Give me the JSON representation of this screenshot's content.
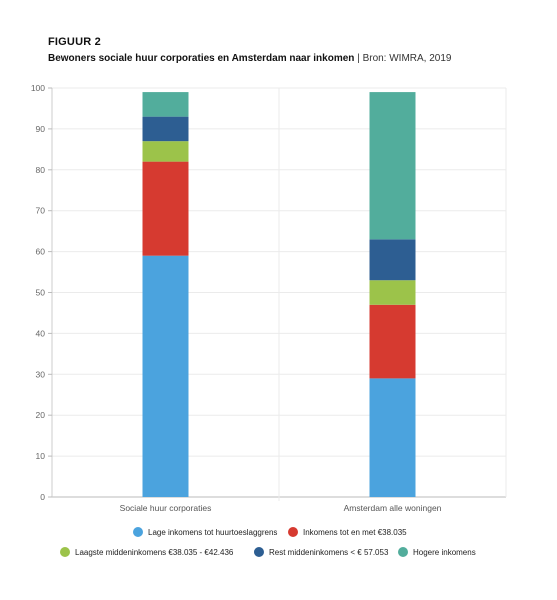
{
  "figure_label": "FIGUUR 2",
  "title": "Bewoners sociale huur corporaties en Amsterdam naar inkomen",
  "source": "| Bron: WIMRA, 2019",
  "colors": {
    "lage": "#4ba3de",
    "inkomens_tot": "#d63a30",
    "laagste_midden": "#9cc34a",
    "rest_midden": "#2d5e92",
    "hogere": "#52ad9c"
  },
  "chart_data": {
    "type": "bar",
    "stacked": true,
    "categories": [
      "Sociale huur corporaties",
      "Amsterdam alle woningen"
    ],
    "series": [
      {
        "name": "Lage inkomens tot huurtoeslaggrens",
        "values": [
          59,
          29
        ],
        "color_key": "lage"
      },
      {
        "name": "Inkomens tot en met €38.035",
        "values": [
          23,
          18
        ],
        "color_key": "inkomens_tot"
      },
      {
        "name": "Laagste middeninkomens  €38.035 - €42.436",
        "values": [
          5,
          6
        ],
        "color_key": "laagste_midden"
      },
      {
        "name": "Rest middeninkomens < € 57.053",
        "values": [
          6,
          10
        ],
        "color_key": "rest_midden"
      },
      {
        "name": "Hogere inkomens",
        "values": [
          6,
          36
        ],
        "color_key": "hogere"
      }
    ],
    "ylim": [
      0,
      100
    ],
    "yticks": [
      0,
      10,
      20,
      30,
      40,
      50,
      60,
      70,
      80,
      90,
      100
    ],
    "grid": true,
    "legend_position": "bottom"
  }
}
